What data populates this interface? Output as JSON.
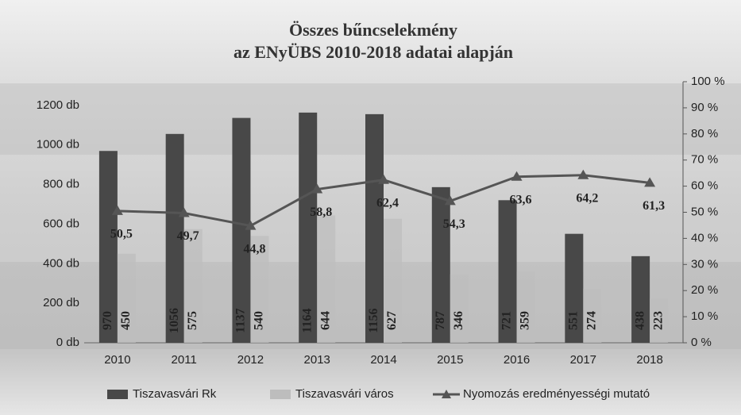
{
  "chart_data": {
    "type": "bar-line",
    "title": [
      "Összes bűncselekmény",
      "az ENyÜBS 2010-2018 adatai alapján"
    ],
    "categories": [
      "2010",
      "2011",
      "2012",
      "2013",
      "2014",
      "2015",
      "2016",
      "2017",
      "2018"
    ],
    "series": [
      {
        "name": "Tiszavasvári Rk",
        "type": "bar",
        "color": "#484848",
        "values": [
          970,
          1056,
          1137,
          1164,
          1156,
          787,
          721,
          551,
          438
        ]
      },
      {
        "name": "Tiszavasvári város",
        "type": "bar",
        "color": "#bdbdbd",
        "values": [
          450,
          575,
          540,
          644,
          627,
          346,
          359,
          274,
          223
        ]
      },
      {
        "name": "Nyomozás eredményességi mutató",
        "type": "line",
        "axis": "y2",
        "color": "#555555",
        "values": [
          50.5,
          49.7,
          44.8,
          58.8,
          62.4,
          54.3,
          63.6,
          64.2,
          61.3
        ],
        "value_labels": [
          "50,5",
          "49,7",
          "44,8",
          "58,8",
          "62,4",
          "54,3",
          "63,6",
          "64,2",
          "61,3"
        ]
      }
    ],
    "ylim": [
      0,
      1320
    ],
    "yticks": [
      {
        "value": 0,
        "label": "0 db"
      },
      {
        "value": 200,
        "label": "200 db"
      },
      {
        "value": 400,
        "label": "400 db"
      },
      {
        "value": 600,
        "label": "600 db"
      },
      {
        "value": 800,
        "label": "800 db"
      },
      {
        "value": 1000,
        "label": "1000 db"
      },
      {
        "value": 1200,
        "label": "1200 db"
      }
    ],
    "y2lim": [
      0,
      100
    ],
    "y2ticks": [
      {
        "value": 0,
        "label": "0 %"
      },
      {
        "value": 10,
        "label": "10 %"
      },
      {
        "value": 20,
        "label": "20 %"
      },
      {
        "value": 30,
        "label": "30 %"
      },
      {
        "value": 40,
        "label": "40 %"
      },
      {
        "value": 50,
        "label": "50 %"
      },
      {
        "value": 60,
        "label": "60 %"
      },
      {
        "value": 70,
        "label": "70 %"
      },
      {
        "value": 80,
        "label": "80 %"
      },
      {
        "value": 90,
        "label": "90 %"
      },
      {
        "value": 100,
        "label": "100 %"
      }
    ],
    "legend": "bottom"
  }
}
